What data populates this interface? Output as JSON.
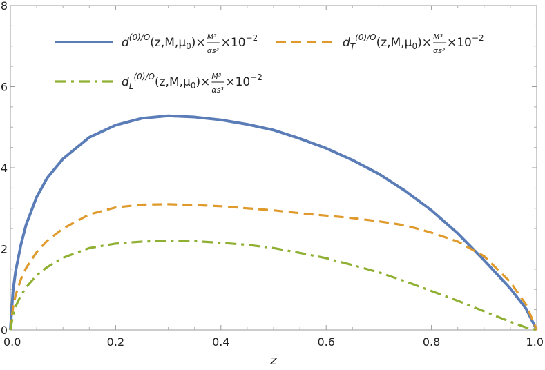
{
  "chart_data": {
    "type": "line",
    "xlabel": "z",
    "ylabel": "",
    "xlim": [
      0.0,
      1.0
    ],
    "ylim": [
      0,
      8
    ],
    "x_ticks": [
      "0.0",
      "0.2",
      "0.4",
      "0.6",
      "0.8",
      "1.0"
    ],
    "y_ticks": [
      "0",
      "2",
      "4",
      "6",
      "8"
    ],
    "grid": false,
    "legend_position": "top",
    "series": [
      {
        "key": "total",
        "name": "d^{(0)/O}(z,M,μ0)×M³/αs³×10⁻²",
        "style": "solid",
        "color": "#5b7db7",
        "legend": {
          "pre": "d",
          "sub": "",
          "sup": "(0)/O",
          "args": "(z,M,μ",
          "args_sub": "0",
          "close": ")×",
          "frac_num": "M³",
          "frac_den": "αs³",
          "tail": "×10",
          "tail_sup": "−2"
        },
        "points": [
          [
            0.0,
            0.0
          ],
          [
            0.005,
            0.96
          ],
          [
            0.01,
            1.45
          ],
          [
            0.02,
            2.1
          ],
          [
            0.03,
            2.6
          ],
          [
            0.05,
            3.28
          ],
          [
            0.07,
            3.75
          ],
          [
            0.1,
            4.22
          ],
          [
            0.15,
            4.75
          ],
          [
            0.2,
            5.05
          ],
          [
            0.25,
            5.22
          ],
          [
            0.3,
            5.28
          ],
          [
            0.35,
            5.25
          ],
          [
            0.4,
            5.18
          ],
          [
            0.45,
            5.07
          ],
          [
            0.5,
            4.93
          ],
          [
            0.55,
            4.72
          ],
          [
            0.6,
            4.48
          ],
          [
            0.65,
            4.19
          ],
          [
            0.7,
            3.85
          ],
          [
            0.75,
            3.43
          ],
          [
            0.8,
            2.95
          ],
          [
            0.85,
            2.38
          ],
          [
            0.9,
            1.72
          ],
          [
            0.95,
            1.02
          ],
          [
            0.98,
            0.52
          ],
          [
            1.0,
            0.0
          ]
        ]
      },
      {
        "key": "transverse",
        "name": "d_T^{(0)/O}(z,M,μ0)×M³/αs³×10⁻²",
        "style": "dashed",
        "color": "#e09a2c",
        "legend": {
          "pre": "d",
          "sub": "T",
          "sup": "(0)/O",
          "args": "(z,M,μ",
          "args_sub": "0",
          "close": ")×",
          "frac_num": "M³",
          "frac_den": "αs³",
          "tail": "×10",
          "tail_sup": "−2"
        },
        "points": [
          [
            0.0,
            0.0
          ],
          [
            0.005,
            0.55
          ],
          [
            0.01,
            0.86
          ],
          [
            0.02,
            1.25
          ],
          [
            0.03,
            1.53
          ],
          [
            0.05,
            1.92
          ],
          [
            0.07,
            2.2
          ],
          [
            0.1,
            2.5
          ],
          [
            0.15,
            2.85
          ],
          [
            0.2,
            3.02
          ],
          [
            0.25,
            3.09
          ],
          [
            0.3,
            3.1
          ],
          [
            0.35,
            3.08
          ],
          [
            0.4,
            3.05
          ],
          [
            0.45,
            3.0
          ],
          [
            0.5,
            2.95
          ],
          [
            0.55,
            2.88
          ],
          [
            0.6,
            2.82
          ],
          [
            0.65,
            2.76
          ],
          [
            0.7,
            2.68
          ],
          [
            0.75,
            2.58
          ],
          [
            0.8,
            2.4
          ],
          [
            0.85,
            2.18
          ],
          [
            0.9,
            1.82
          ],
          [
            0.95,
            1.18
          ],
          [
            0.98,
            0.62
          ],
          [
            1.0,
            0.0
          ]
        ]
      },
      {
        "key": "longitudinal",
        "name": "d_L^{(0)/O}(z,M,μ0)×M³/αs³×10⁻²",
        "style": "dash-dot",
        "color": "#8fb032",
        "legend": {
          "pre": "d",
          "sub": "L",
          "sup": "(0)/O",
          "args": "(z,M,μ",
          "args_sub": "0",
          "close": ")×",
          "frac_num": "M³",
          "frac_den": "αs³",
          "tail": "×10",
          "tail_sup": "−2"
        },
        "points": [
          [
            0.0,
            0.0
          ],
          [
            0.005,
            0.36
          ],
          [
            0.01,
            0.58
          ],
          [
            0.02,
            0.85
          ],
          [
            0.03,
            1.05
          ],
          [
            0.05,
            1.35
          ],
          [
            0.07,
            1.55
          ],
          [
            0.1,
            1.78
          ],
          [
            0.15,
            2.02
          ],
          [
            0.2,
            2.13
          ],
          [
            0.25,
            2.18
          ],
          [
            0.3,
            2.2
          ],
          [
            0.35,
            2.19
          ],
          [
            0.4,
            2.15
          ],
          [
            0.45,
            2.1
          ],
          [
            0.5,
            2.02
          ],
          [
            0.55,
            1.9
          ],
          [
            0.6,
            1.77
          ],
          [
            0.65,
            1.6
          ],
          [
            0.7,
            1.42
          ],
          [
            0.75,
            1.2
          ],
          [
            0.8,
            0.96
          ],
          [
            0.85,
            0.72
          ],
          [
            0.9,
            0.46
          ],
          [
            0.95,
            0.2
          ],
          [
            0.98,
            0.06
          ],
          [
            1.0,
            0.0
          ]
        ]
      }
    ]
  }
}
